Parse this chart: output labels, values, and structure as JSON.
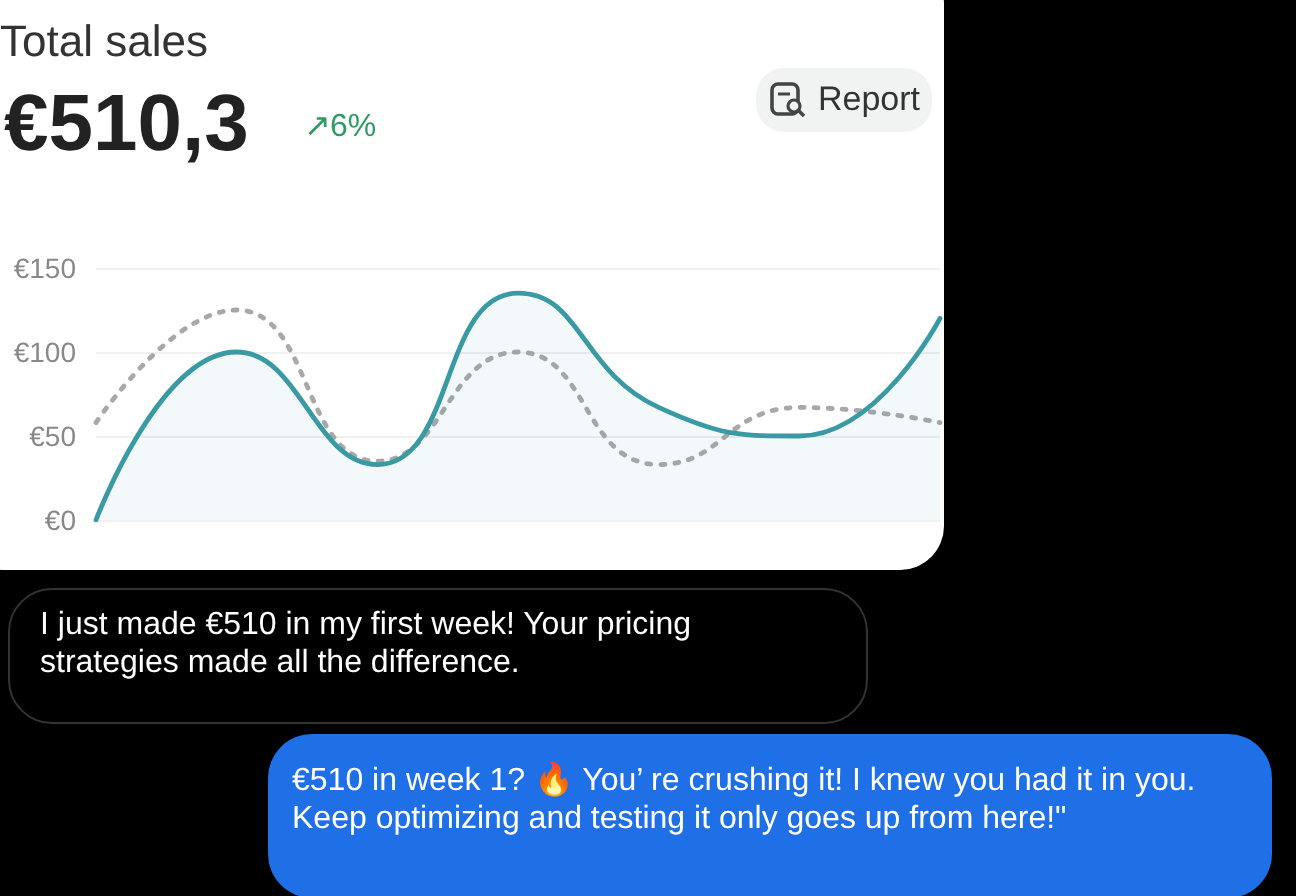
{
  "chart_data": {
    "type": "line",
    "title": "Total sales",
    "subtitle": "€510,3",
    "annotations": [
      "↗6%",
      "Report",
      "I just made €510 in my first week! Your pricing strategies made all the difference.",
      "€510 in week 1? 🔥 You’ re crushing it! I knew you had it in you. Keep optimizing and testing it only goes up from here!\""
    ],
    "categories": [
      null,
      null,
      null,
      null,
      null,
      null,
      null
    ],
    "series": [
      {
        "type": "area",
        "color": "#3a9aa3",
        "values": [
          0,
          100,
          33,
          135,
          67,
          50,
          120
        ],
        "line_style": "solid"
      },
      {
        "color": "#a8a8a8",
        "values": [
          58,
          125,
          35,
          100,
          33,
          67,
          58
        ],
        "line_style": "dotted"
      }
    ],
    "ylim": [
      0,
      150
    ],
    "yticks": [
      {
        "value": 0,
        "label": "€0"
      },
      {
        "value": 50,
        "label": "€50"
      },
      {
        "value": 100,
        "label": "€100"
      },
      {
        "value": 150,
        "label": "€150"
      }
    ],
    "grid": "y",
    "marker": "none"
  }
}
